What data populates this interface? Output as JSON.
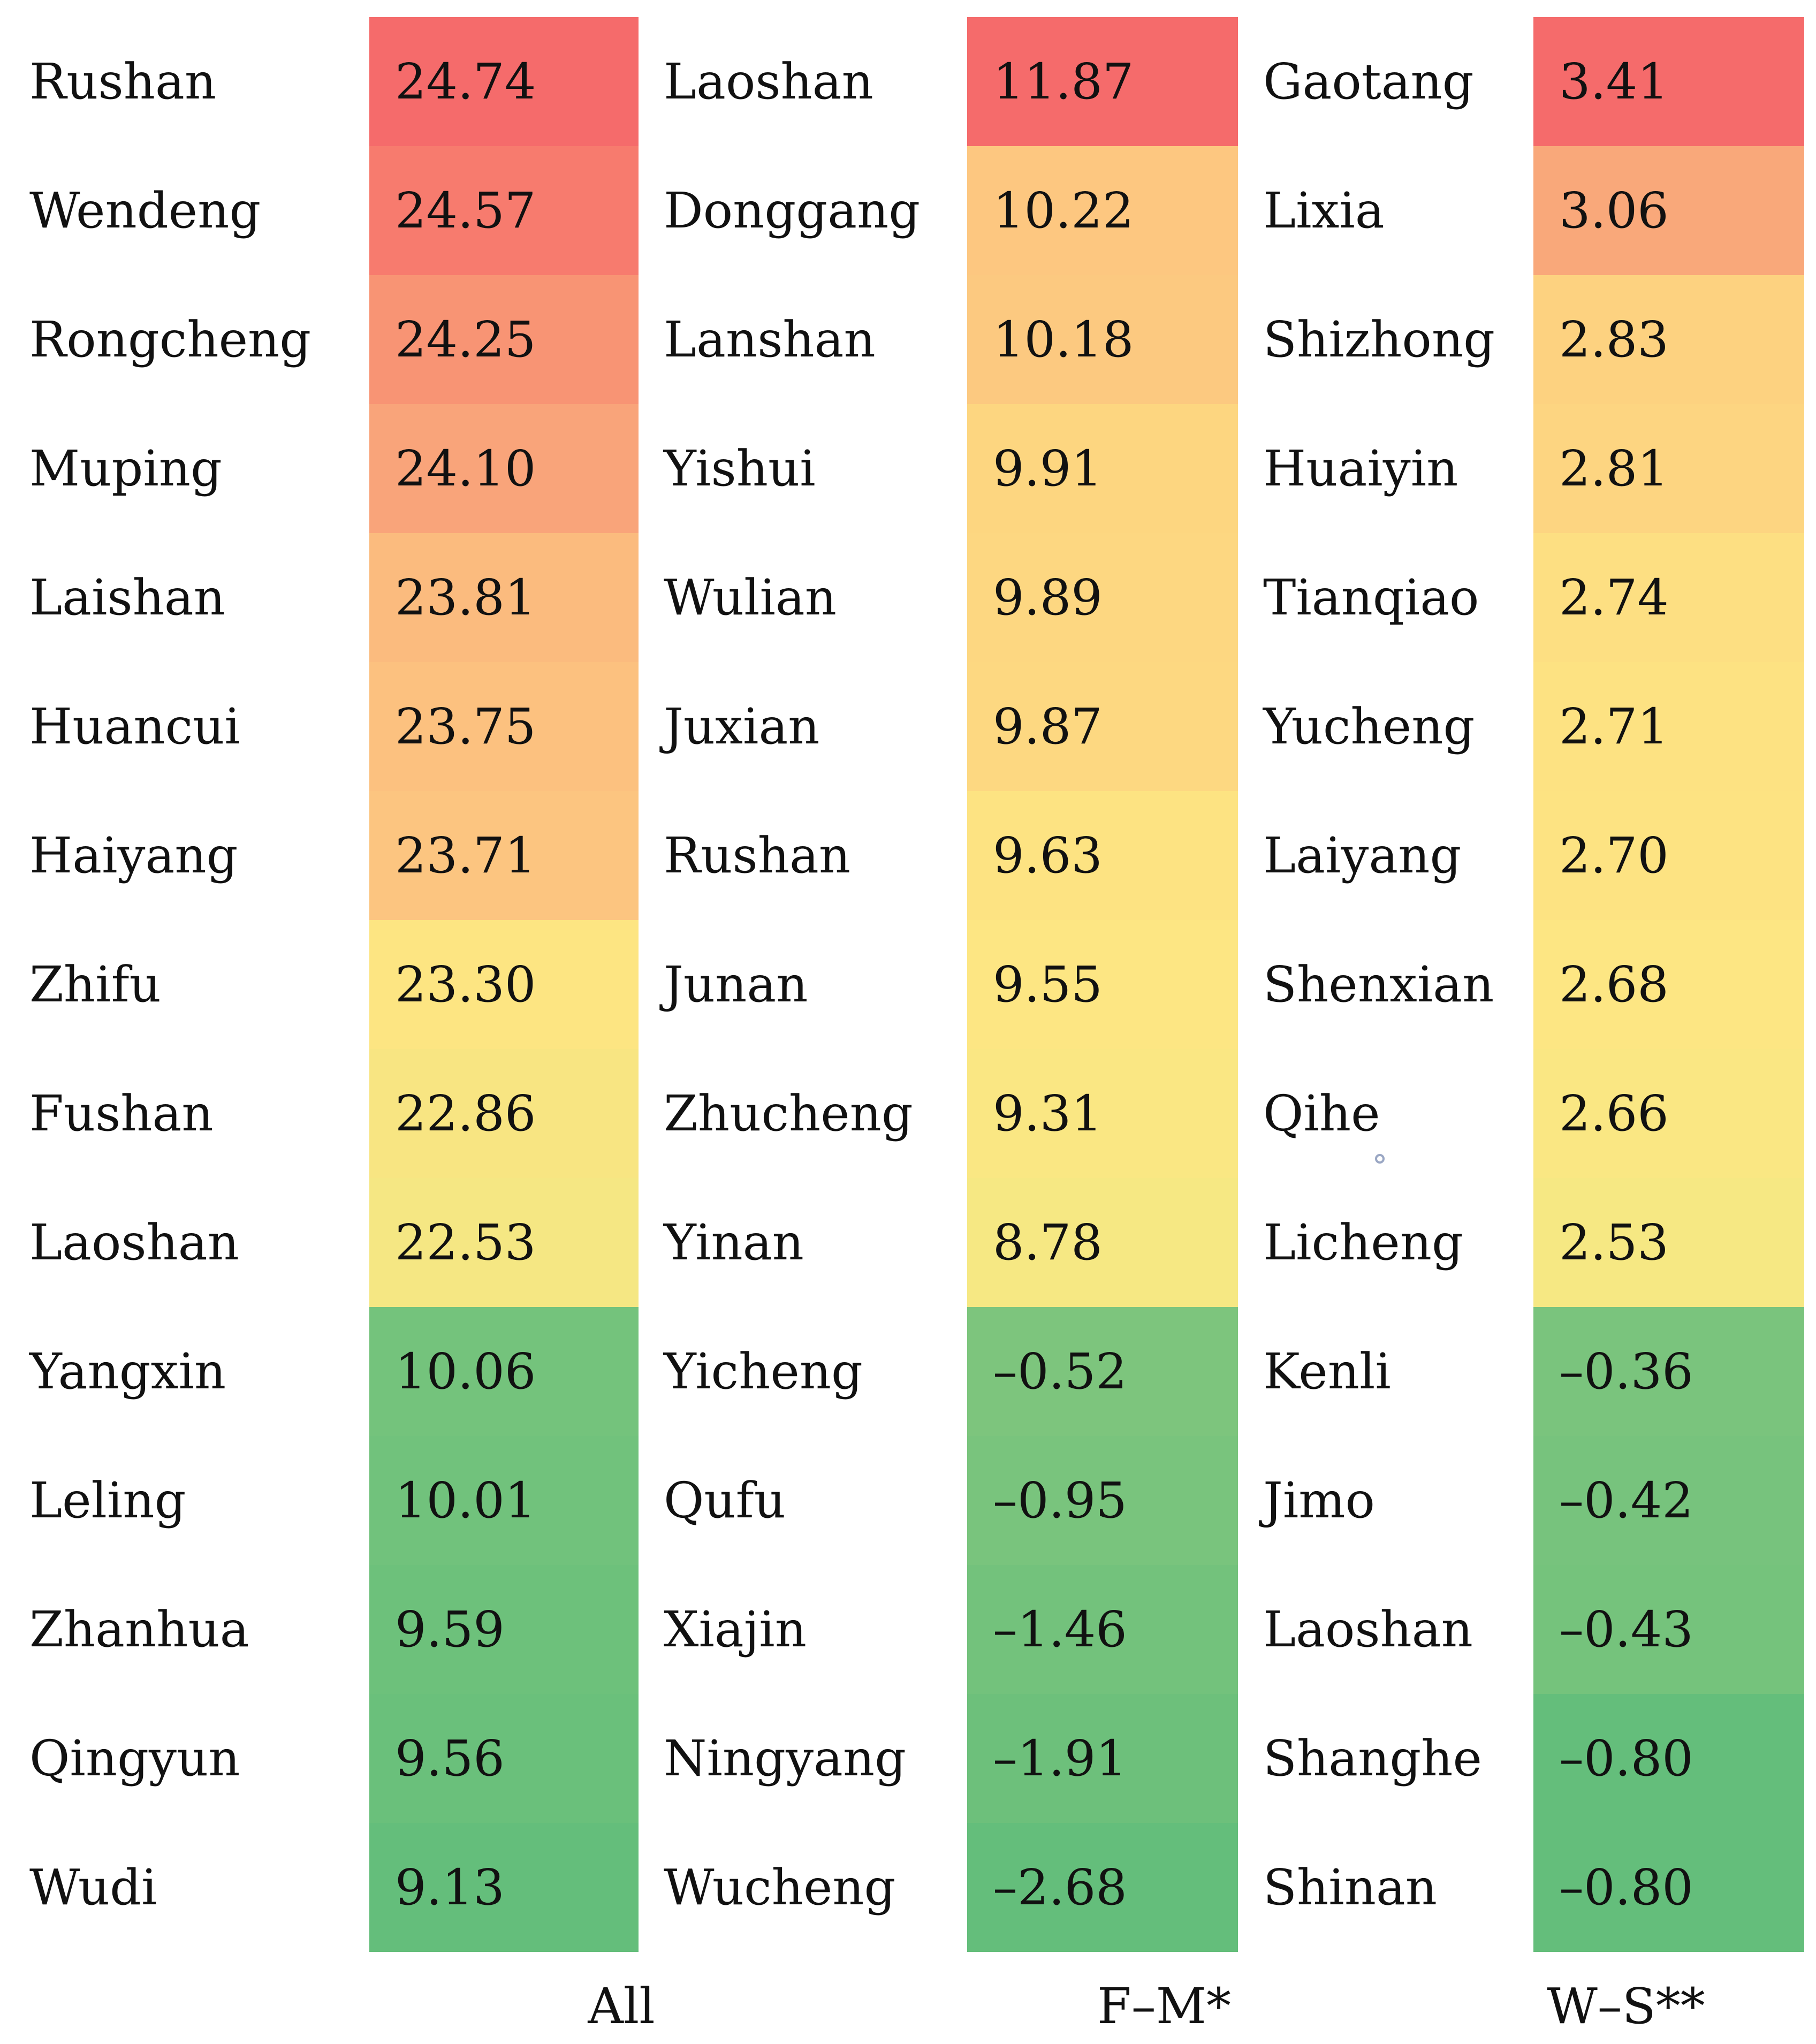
{
  "chart_data": {
    "type": "table",
    "columns": [
      {
        "label": "All",
        "rows": [
          {
            "name": "Rushan",
            "value": "24.74",
            "color": "#f56b6b"
          },
          {
            "name": "Wendeng",
            "value": "24.57",
            "color": "#f77b6e"
          },
          {
            "name": "Rongcheng",
            "value": "24.25",
            "color": "#f89474"
          },
          {
            "name": "Muping",
            "value": "24.10",
            "color": "#f9a47a"
          },
          {
            "name": "Laishan",
            "value": "23.81",
            "color": "#fbbb7e"
          },
          {
            "name": "Huancui",
            "value": "23.75",
            "color": "#fcc17f"
          },
          {
            "name": "Haiyang",
            "value": "23.71",
            "color": "#fcc580"
          },
          {
            "name": "Zhifu",
            "value": "23.30",
            "color": "#fde582"
          },
          {
            "name": "Fushan",
            "value": "22.86",
            "color": "#f8e582"
          },
          {
            "name": "Laoshan",
            "value": "22.53",
            "color": "#f5e783"
          },
          {
            "name": "Yangxin",
            "value": "10.06",
            "color": "#74c37c"
          },
          {
            "name": "Leling",
            "value": "10.01",
            "color": "#71c27c"
          },
          {
            "name": "Zhanhua",
            "value": "9.59",
            "color": "#6dc17b"
          },
          {
            "name": "Qingyun",
            "value": "9.56",
            "color": "#6ac07b"
          },
          {
            "name": "Wudi",
            "value": "9.13",
            "color": "#64be7b"
          }
        ]
      },
      {
        "label": "F–M*",
        "rows": [
          {
            "name": "Laoshan",
            "value": "11.87",
            "color": "#f56b6b"
          },
          {
            "name": "Donggang",
            "value": "10.22",
            "color": "#fdc780"
          },
          {
            "name": "Lanshan",
            "value": "10.18",
            "color": "#fcc980"
          },
          {
            "name": "Yishui",
            "value": "9.91",
            "color": "#fdd680"
          },
          {
            "name": "Wulian",
            "value": "9.89",
            "color": "#fdd781"
          },
          {
            "name": "Juxian",
            "value": "9.87",
            "color": "#fdd881"
          },
          {
            "name": "Rushan",
            "value": "9.63",
            "color": "#fde382"
          },
          {
            "name": "Junan",
            "value": "9.55",
            "color": "#fde683"
          },
          {
            "name": "Zhucheng",
            "value": "9.31",
            "color": "#fae783"
          },
          {
            "name": "Yinan",
            "value": "8.78",
            "color": "#f6e883"
          },
          {
            "name": "Yicheng",
            "value": "–0.52",
            "color": "#7dc57d"
          },
          {
            "name": "Qufu",
            "value": "–0.95",
            "color": "#79c47d"
          },
          {
            "name": "Xiajin",
            "value": "–1.46",
            "color": "#73c27c"
          },
          {
            "name": "Ningyang",
            "value": "–1.91",
            "color": "#6dc07b"
          },
          {
            "name": "Wucheng",
            "value": "–2.68",
            "color": "#64be7b"
          }
        ]
      },
      {
        "label": "W–S**",
        "rows": [
          {
            "name": "Gaotang",
            "value": "3.41",
            "color": "#f56b6b"
          },
          {
            "name": "Lixia",
            "value": "3.06",
            "color": "#f9a87a"
          },
          {
            "name": "Shizhong",
            "value": "2.83",
            "color": "#fdd280"
          },
          {
            "name": "Huaiyin",
            "value": "2.81",
            "color": "#fdd581"
          },
          {
            "name": "Tianqiao",
            "value": "2.74",
            "color": "#fddf82"
          },
          {
            "name": "Yucheng",
            "value": "2.71",
            "color": "#fde282"
          },
          {
            "name": "Laiyang",
            "value": "2.70",
            "color": "#fde382"
          },
          {
            "name": "Shenxian",
            "value": "2.68",
            "color": "#fde683"
          },
          {
            "name": "Qihe",
            "value": "2.66",
            "color": "#fae783"
          },
          {
            "name": "Licheng",
            "value": "2.53",
            "color": "#f6e883"
          },
          {
            "name": "Kenli",
            "value": "–0.36",
            "color": "#7ac47d"
          },
          {
            "name": "Jimo",
            "value": "–0.42",
            "color": "#77c37d"
          },
          {
            "name": "Laoshan",
            "value": "–0.43",
            "color": "#75c37c"
          },
          {
            "name": "Shanghe",
            "value": "–0.80",
            "color": "#64be7b"
          },
          {
            "name": "Shinan",
            "value": "–0.80",
            "color": "#64be7b"
          }
        ]
      }
    ]
  }
}
